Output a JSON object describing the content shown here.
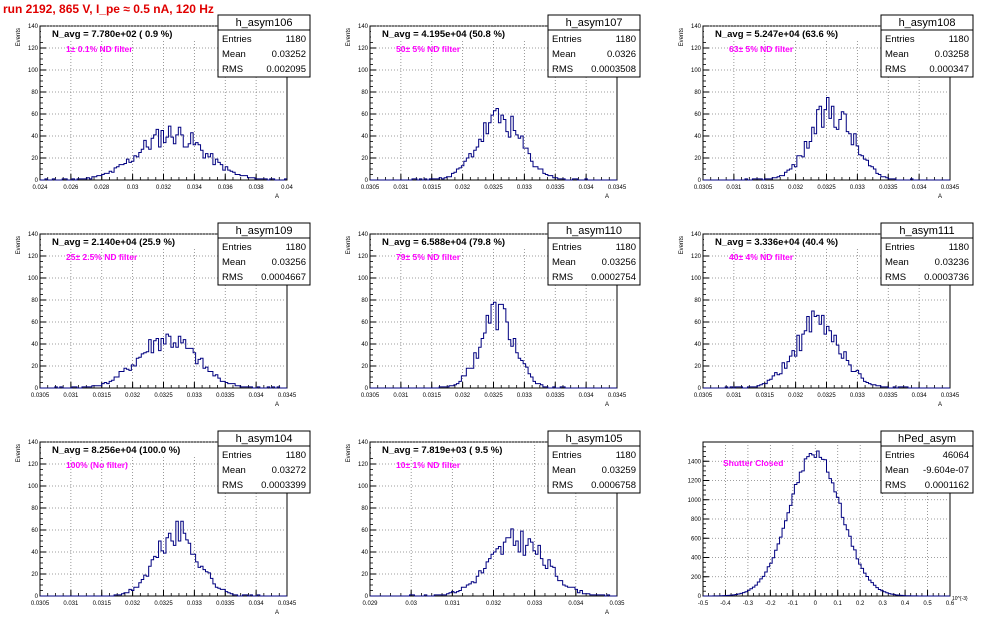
{
  "page": {
    "title": "run 2192,   865 V, I_pe ≈ 0.5 nA, 120 Hz"
  },
  "colors": {
    "hist": "#000080",
    "title": "#e00000",
    "annotation": "#ff00ff",
    "grid": "#7f7f7f"
  },
  "chart_data": [
    {
      "type": "bar",
      "name": "h_asym106",
      "row": 0,
      "col": 0,
      "navg": "N_avg = 7.780e+02 ( 0.9 %)",
      "filter": "1± 0.1% ND filter",
      "entries": "1180",
      "mean": "0.03252",
      "rms": "0.002095",
      "xlim": [
        0.024,
        0.04
      ],
      "ylim": [
        0,
        140
      ],
      "xticks": [
        "0.024",
        "0.026",
        "0.028",
        "0.03",
        "0.032",
        "0.034",
        "0.036",
        "0.038",
        "0.04"
      ],
      "yticks": [
        "0",
        "20",
        "40",
        "60",
        "80",
        "100",
        "120",
        "140"
      ],
      "ylabel": "Events",
      "xlabel": "A",
      "mu": 0.03252,
      "sigma": 0.002095,
      "peak": 42,
      "seed": 11
    },
    {
      "type": "bar",
      "name": "h_asym107",
      "row": 0,
      "col": 1,
      "navg": "N_avg = 4.195e+04 (50.8 %)",
      "filter": "50± 5% ND filter",
      "entries": "1180",
      "mean": "0.0326",
      "rms": "0.0003508",
      "xlim": [
        0.0305,
        0.0345
      ],
      "ylim": [
        0,
        140
      ],
      "xticks": [
        "0.0305",
        "0.031",
        "0.0315",
        "0.032",
        "0.0325",
        "0.033",
        "0.0335",
        "0.034",
        "0.0345"
      ],
      "yticks": [
        "0",
        "20",
        "40",
        "60",
        "80",
        "100",
        "120",
        "140"
      ],
      "ylabel": "Events",
      "xlabel": "A",
      "mu": 0.0326,
      "sigma": 0.0003508,
      "peak": 55,
      "seed": 23
    },
    {
      "type": "bar",
      "name": "h_asym108",
      "row": 0,
      "col": 2,
      "navg": "N_avg = 5.247e+04 (63.6 %)",
      "filter": "63± 5% ND filter",
      "entries": "1180",
      "mean": "0.03258",
      "rms": "0.000347",
      "xlim": [
        0.0305,
        0.0345
      ],
      "ylim": [
        0,
        140
      ],
      "xticks": [
        "0.0305",
        "0.031",
        "0.0315",
        "0.032",
        "0.0325",
        "0.033",
        "0.0335",
        "0.034",
        "0.0345"
      ],
      "yticks": [
        "0",
        "20",
        "40",
        "60",
        "80",
        "100",
        "120",
        "140"
      ],
      "ylabel": "Events",
      "xlabel": "A",
      "mu": 0.03258,
      "sigma": 0.000347,
      "peak": 63,
      "seed": 37
    },
    {
      "type": "bar",
      "name": "h_asym109",
      "row": 1,
      "col": 0,
      "navg": "N_avg = 2.140e+04 (25.9 %)",
      "filter": "25± 2.5% ND filter",
      "entries": "1180",
      "mean": "0.03256",
      "rms": "0.0004667",
      "xlim": [
        0.0305,
        0.0345
      ],
      "ylim": [
        0,
        140
      ],
      "xticks": [
        "0.0305",
        "0.031",
        "0.0315",
        "0.032",
        "0.0325",
        "0.033",
        "0.0335",
        "0.034",
        "0.0345"
      ],
      "yticks": [
        "0",
        "20",
        "40",
        "60",
        "80",
        "100",
        "120",
        "140"
      ],
      "ylabel": "Events",
      "xlabel": "A",
      "mu": 0.03256,
      "sigma": 0.0004667,
      "peak": 44,
      "seed": 41
    },
    {
      "type": "bar",
      "name": "h_asym110",
      "row": 1,
      "col": 1,
      "navg": "N_avg = 6.588e+04 (79.8 %)",
      "filter": "79± 5% ND filter",
      "entries": "1180",
      "mean": "0.03256",
      "rms": "0.0002754",
      "xlim": [
        0.0305,
        0.0345
      ],
      "ylim": [
        0,
        140
      ],
      "xticks": [
        "0.0305",
        "0.031",
        "0.0315",
        "0.032",
        "0.0325",
        "0.033",
        "0.0335",
        "0.034",
        "0.0345"
      ],
      "yticks": [
        "0",
        "20",
        "40",
        "60",
        "80",
        "100",
        "120",
        "140"
      ],
      "ylabel": "Events",
      "xlabel": "A",
      "mu": 0.03256,
      "sigma": 0.0002754,
      "peak": 68,
      "seed": 53
    },
    {
      "type": "bar",
      "name": "h_asym111",
      "row": 1,
      "col": 2,
      "navg": "N_avg = 3.336e+04 (40.4 %)",
      "filter": "40± 4% ND filter",
      "entries": "1180",
      "mean": "0.03236",
      "rms": "0.0003736",
      "xlim": [
        0.0305,
        0.0345
      ],
      "ylim": [
        0,
        140
      ],
      "xticks": [
        "0.0305",
        "0.031",
        "0.0315",
        "0.032",
        "0.0325",
        "0.033",
        "0.0335",
        "0.034",
        "0.0345"
      ],
      "yticks": [
        "0",
        "20",
        "40",
        "60",
        "80",
        "100",
        "120",
        "140"
      ],
      "ylabel": "Events",
      "xlabel": "A",
      "mu": 0.03236,
      "sigma": 0.0003736,
      "peak": 58,
      "seed": 61
    },
    {
      "type": "bar",
      "name": "h_asym104",
      "row": 2,
      "col": 0,
      "navg": "N_avg = 8.256e+04 (100.0 %)",
      "filter": "100% (No filter)",
      "entries": "1180",
      "mean": "0.03272",
      "rms": "0.0003399",
      "xlim": [
        0.0305,
        0.0345
      ],
      "ylim": [
        0,
        140
      ],
      "xticks": [
        "0.0305",
        "0.031",
        "0.0315",
        "0.032",
        "0.0325",
        "0.033",
        "0.0335",
        "0.034",
        "0.0345"
      ],
      "yticks": [
        "0",
        "20",
        "40",
        "60",
        "80",
        "100",
        "120",
        "140"
      ],
      "ylabel": "Events",
      "xlabel": "A",
      "mu": 0.03272,
      "sigma": 0.0003399,
      "peak": 57,
      "seed": 71
    },
    {
      "type": "bar",
      "name": "h_asym105",
      "row": 2,
      "col": 1,
      "navg": "N_avg = 7.819e+03 ( 9.5 %)",
      "filter": "10± 1% ND filter",
      "entries": "1180",
      "mean": "0.03259",
      "rms": "0.0006758",
      "xlim": [
        0.029,
        0.035
      ],
      "ylim": [
        0,
        140
      ],
      "xticks": [
        "0.029",
        "0.03",
        "0.031",
        "0.032",
        "0.033",
        "0.034",
        "0.035"
      ],
      "yticks": [
        "0",
        "20",
        "40",
        "60",
        "80",
        "100",
        "120",
        "140"
      ],
      "ylabel": "Events",
      "xlabel": "A",
      "mu": 0.03259,
      "sigma": 0.0006758,
      "peak": 50,
      "seed": 83
    },
    {
      "type": "bar",
      "name": "hPed_asym",
      "row": 2,
      "col": 2,
      "navg": "",
      "filter": "Shutter Closed",
      "entries": "46064",
      "mean": "-9.604e-07",
      "rms": "0.0001162",
      "xlim": [
        -0.5,
        0.6
      ],
      "ylim": [
        0,
        1600
      ],
      "xscale": "10^{-3}",
      "xticks": [
        "-0.5",
        "-0.4",
        "-0.3",
        "-0.2",
        "-0.1",
        "0",
        "0.1",
        "0.2",
        "0.3",
        "0.4",
        "0.5",
        "0.6"
      ],
      "yticks": [
        "0",
        "200",
        "400",
        "600",
        "800",
        "1000",
        "1200",
        "1400"
      ],
      "ylabel": "",
      "xlabel": "",
      "mu": -0.00096,
      "sigma": 0.1162,
      "peak": 1480,
      "seed": 97
    }
  ]
}
